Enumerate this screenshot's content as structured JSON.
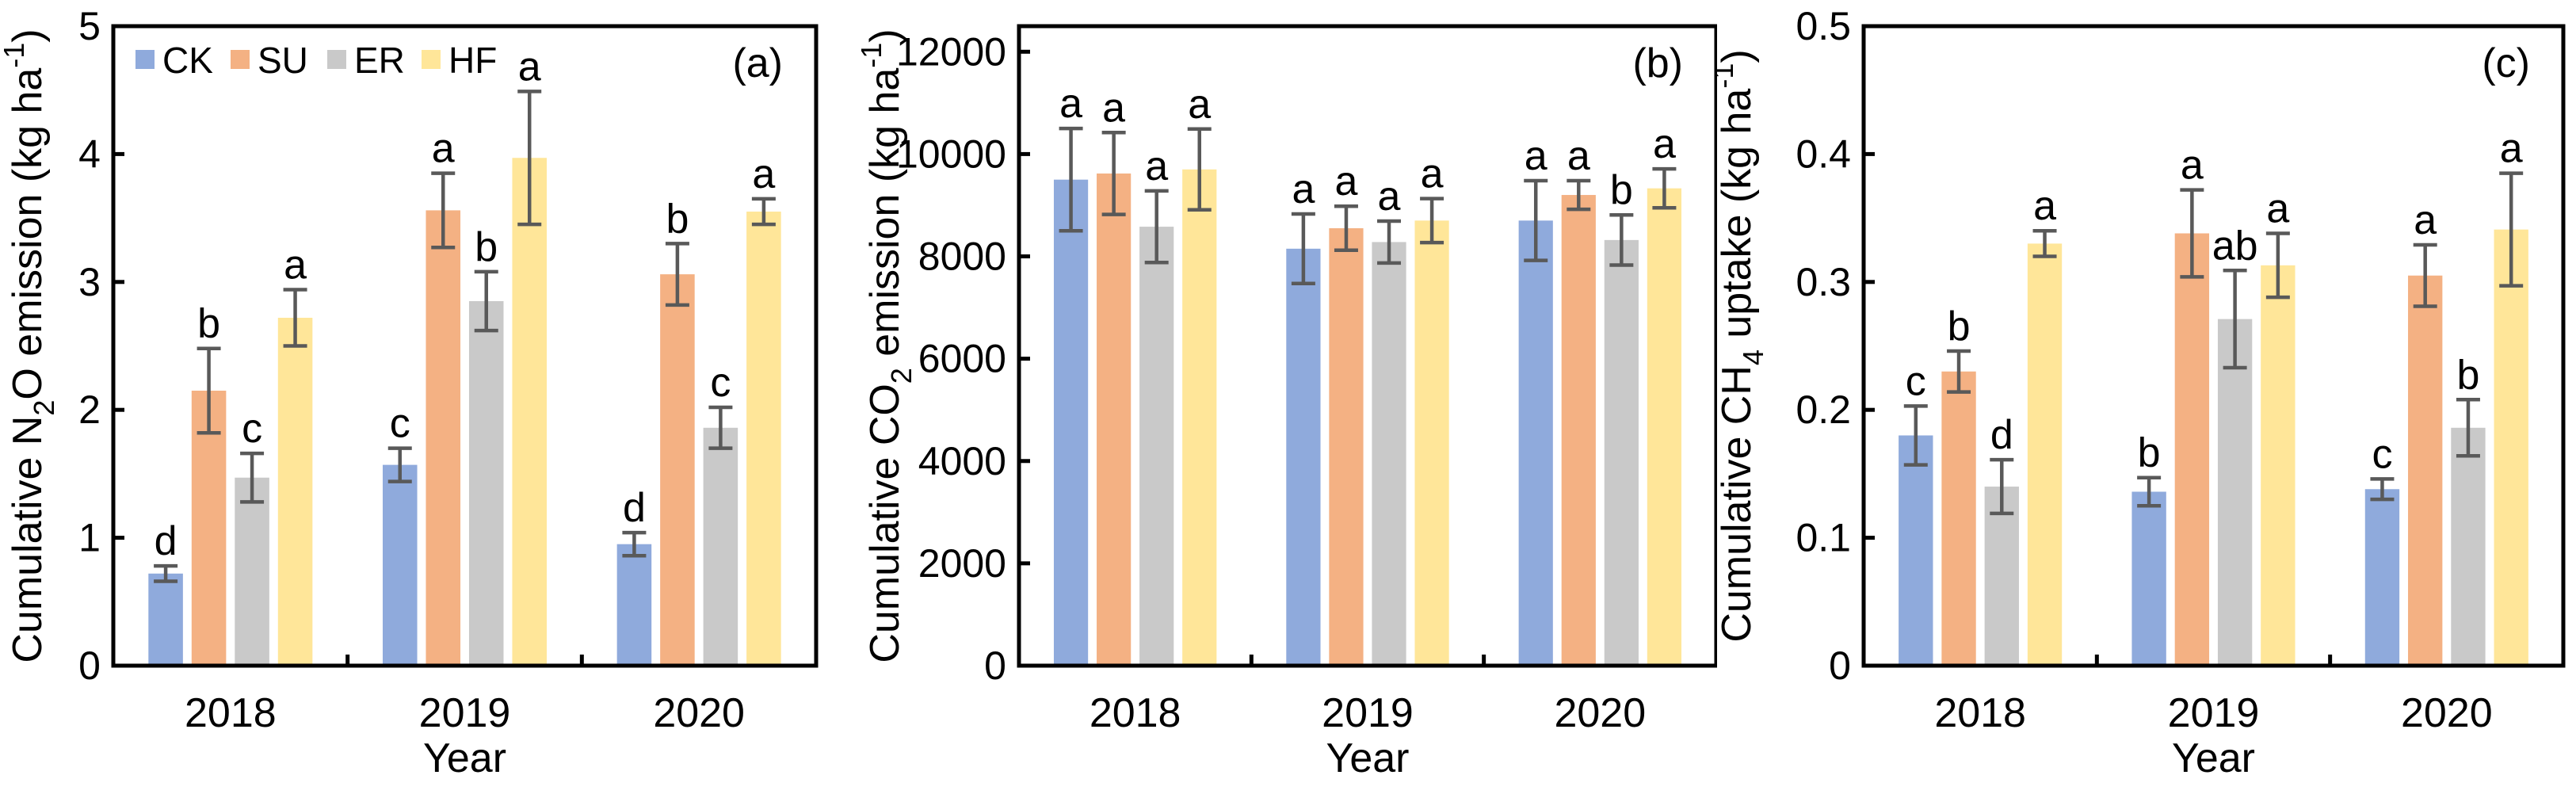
{
  "figure": {
    "background": "#ffffff",
    "frame_color": "#000000",
    "error_bar_color": "#595959"
  },
  "legend": {
    "items": [
      {
        "label": "CK",
        "color": "#8FAADC"
      },
      {
        "label": "SU",
        "color": "#F4B183"
      },
      {
        "label": "ER",
        "color": "#C9C9C9"
      },
      {
        "label": "HF",
        "color": "#FFE699"
      }
    ]
  },
  "chart_data": [
    {
      "type": "bar",
      "panel_label": "(a)",
      "title": "",
      "ylabel_text": "Cumulative N₂O emission (kg ha⁻¹)",
      "ylabel_parts": [
        {
          "t": "Cumulative N"
        },
        {
          "t": "2",
          "style": "sub"
        },
        {
          "t": "O emission (kg ha"
        },
        {
          "t": "-1",
          "style": "sup"
        },
        {
          "t": ")"
        }
      ],
      "xlabel": "Year",
      "categories": [
        "2018",
        "2019",
        "2020"
      ],
      "ylim": [
        0,
        5
      ],
      "yticks": [
        0,
        1,
        2,
        3,
        4,
        5
      ],
      "ytick_labels": [
        "0",
        "1",
        "2",
        "3",
        "4",
        "5"
      ],
      "grid": false,
      "legend_position": "top-left-inside",
      "show_legend": true,
      "series": [
        {
          "name": "CK",
          "color": "#8FAADC",
          "values": [
            0.72,
            1.57,
            0.95
          ],
          "errors": [
            0.06,
            0.13,
            0.09
          ],
          "letters": [
            "d",
            "c",
            "d"
          ]
        },
        {
          "name": "SU",
          "color": "#F4B183",
          "values": [
            2.15,
            3.56,
            3.06
          ],
          "errors": [
            0.33,
            0.29,
            0.24
          ],
          "letters": [
            "b",
            "a",
            "b"
          ]
        },
        {
          "name": "ER",
          "color": "#C9C9C9",
          "values": [
            1.47,
            2.85,
            1.86
          ],
          "errors": [
            0.19,
            0.23,
            0.16
          ],
          "letters": [
            "c",
            "b",
            "c"
          ]
        },
        {
          "name": "HF",
          "color": "#FFE699",
          "values": [
            2.72,
            3.97,
            3.55
          ],
          "errors": [
            0.22,
            0.52,
            0.1
          ],
          "letters": [
            "a",
            "a",
            "a"
          ]
        }
      ]
    },
    {
      "type": "bar",
      "panel_label": "(b)",
      "title": "",
      "ylabel_text": "Cumulative CO₂ emission (kg ha⁻¹)",
      "ylabel_parts": [
        {
          "t": "Cumulative CO"
        },
        {
          "t": "2",
          "style": "sub"
        },
        {
          "t": " emission (kg ha"
        },
        {
          "t": "-1",
          "style": "sup"
        },
        {
          "t": ")"
        }
      ],
      "xlabel": "Year",
      "categories": [
        "2018",
        "2019",
        "2020"
      ],
      "ylim": [
        0,
        12500
      ],
      "yticks": [
        0,
        2000,
        4000,
        6000,
        8000,
        10000,
        12000
      ],
      "ytick_labels": [
        "0",
        "2000",
        "4000",
        "6000",
        "8000",
        "10000",
        "12000"
      ],
      "grid": false,
      "legend_position": "none",
      "show_legend": false,
      "series": [
        {
          "name": "CK",
          "color": "#8FAADC",
          "values": [
            9500,
            8150,
            8700
          ],
          "errors": [
            1000,
            680,
            780
          ],
          "letters": [
            "a",
            "a",
            "a"
          ]
        },
        {
          "name": "SU",
          "color": "#F4B183",
          "values": [
            9620,
            8550,
            9200
          ],
          "errors": [
            800,
            430,
            280
          ],
          "letters": [
            "a",
            "a",
            "a"
          ]
        },
        {
          "name": "ER",
          "color": "#C9C9C9",
          "values": [
            8580,
            8280,
            8320
          ],
          "errors": [
            700,
            410,
            490
          ],
          "letters": [
            "a",
            "a",
            "b"
          ]
        },
        {
          "name": "HF",
          "color": "#FFE699",
          "values": [
            9700,
            8700,
            9330
          ],
          "errors": [
            790,
            430,
            380
          ],
          "letters": [
            "a",
            "a",
            "a"
          ]
        }
      ]
    },
    {
      "type": "bar",
      "panel_label": "(c)",
      "title": "",
      "ylabel_text": "Cumulative CH₄ uptake (kg ha⁻¹)",
      "ylabel_parts": [
        {
          "t": "Cumulative CH"
        },
        {
          "t": "4",
          "style": "sub"
        },
        {
          "t": " uptake (kg ha"
        },
        {
          "t": "-1",
          "style": "sup"
        },
        {
          "t": ")"
        }
      ],
      "xlabel": "Year",
      "categories": [
        "2018",
        "2019",
        "2020"
      ],
      "ylim": [
        0,
        0.5
      ],
      "yticks": [
        0,
        0.1,
        0.2,
        0.3,
        0.4,
        0.5
      ],
      "ytick_labels": [
        "0",
        "0.1",
        "0.2",
        "0.3",
        "0.4",
        "0.5"
      ],
      "grid": false,
      "legend_position": "none",
      "show_legend": false,
      "series": [
        {
          "name": "CK",
          "color": "#8FAADC",
          "values": [
            0.18,
            0.136,
            0.138
          ],
          "errors": [
            0.023,
            0.011,
            0.008
          ],
          "letters": [
            "c",
            "b",
            "c"
          ]
        },
        {
          "name": "SU",
          "color": "#F4B183",
          "values": [
            0.23,
            0.338,
            0.305
          ],
          "errors": [
            0.016,
            0.034,
            0.024
          ],
          "letters": [
            "b",
            "a",
            "a"
          ]
        },
        {
          "name": "ER",
          "color": "#C9C9C9",
          "values": [
            0.14,
            0.271,
            0.186
          ],
          "errors": [
            0.021,
            0.038,
            0.022
          ],
          "letters": [
            "d",
            "ab",
            "b"
          ]
        },
        {
          "name": "HF",
          "color": "#FFE699",
          "values": [
            0.33,
            0.313,
            0.341
          ],
          "errors": [
            0.01,
            0.025,
            0.044
          ],
          "letters": [
            "a",
            "a",
            "a"
          ]
        }
      ]
    }
  ]
}
